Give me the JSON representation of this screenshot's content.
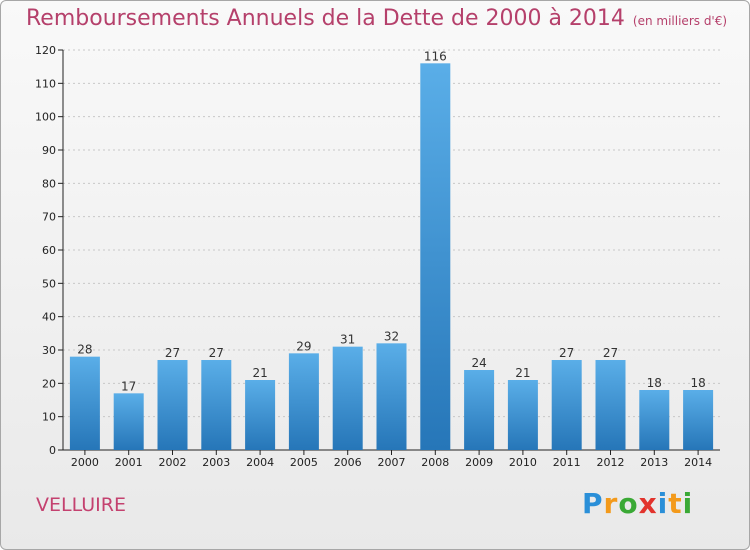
{
  "title": "Remboursements Annuels de la Dette de 2000 à 2014",
  "unit": "(en milliers d'€)",
  "commune": "VELLUIRE",
  "logo": {
    "letters": [
      "P",
      "r",
      "o",
      "x",
      "i",
      "t",
      "i"
    ],
    "colors": [
      "#2a8fd8",
      "#f39a1b",
      "#3aa935",
      "#e2332c",
      "#2a8fd8",
      "#f39a1b",
      "#3aa935"
    ]
  },
  "colors": {
    "title": "#b5406b",
    "bar_top": "#5aaee8",
    "bar_bottom": "#2676b8",
    "axis": "#222222",
    "grid": "#c8c8c8"
  },
  "chart_data": {
    "type": "bar",
    "categories": [
      "2000",
      "2001",
      "2002",
      "2003",
      "2004",
      "2005",
      "2006",
      "2007",
      "2008",
      "2009",
      "2010",
      "2011",
      "2012",
      "2013",
      "2014"
    ],
    "values": [
      28,
      17,
      27,
      27,
      21,
      29,
      31,
      32,
      116,
      24,
      21,
      27,
      27,
      18,
      18
    ],
    "ylim": [
      0,
      120
    ],
    "yticks": [
      0,
      10,
      20,
      30,
      40,
      50,
      60,
      70,
      80,
      90,
      100,
      110,
      120
    ],
    "grid": true,
    "data_labels": true
  }
}
